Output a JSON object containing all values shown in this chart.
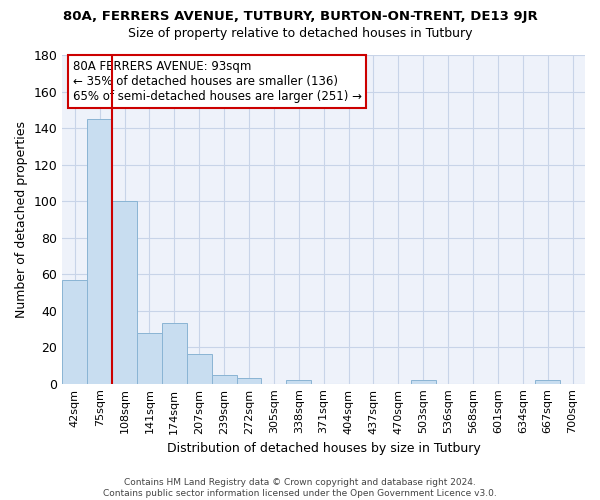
{
  "title": "80A, FERRERS AVENUE, TUTBURY, BURTON-ON-TRENT, DE13 9JR",
  "subtitle": "Size of property relative to detached houses in Tutbury",
  "xlabel": "Distribution of detached houses by size in Tutbury",
  "ylabel": "Number of detached properties",
  "bin_labels": [
    "42sqm",
    "75sqm",
    "108sqm",
    "141sqm",
    "174sqm",
    "207sqm",
    "239sqm",
    "272sqm",
    "305sqm",
    "338sqm",
    "371sqm",
    "404sqm",
    "437sqm",
    "470sqm",
    "503sqm",
    "536sqm",
    "568sqm",
    "601sqm",
    "634sqm",
    "667sqm",
    "700sqm"
  ],
  "bar_heights": [
    57,
    145,
    100,
    28,
    33,
    16,
    5,
    3,
    0,
    2,
    0,
    0,
    0,
    0,
    2,
    0,
    0,
    0,
    0,
    2,
    0
  ],
  "bar_color": "#c8ddf0",
  "bar_edge_color": "#8ab4d4",
  "grid_color": "#c8d4e8",
  "background_color": "#eef2fa",
  "annotation_title": "80A FERRERS AVENUE: 93sqm",
  "annotation_line1": "← 35% of detached houses are smaller (136)",
  "annotation_line2": "65% of semi-detached houses are larger (251) →",
  "annotation_box_facecolor": "#ffffff",
  "annotation_box_edgecolor": "#cc0000",
  "red_line_color": "#cc0000",
  "ylim": [
    0,
    180
  ],
  "yticks": [
    0,
    20,
    40,
    60,
    80,
    100,
    120,
    140,
    160,
    180
  ],
  "footer": "Contains HM Land Registry data © Crown copyright and database right 2024.\nContains public sector information licensed under the Open Government Licence v3.0."
}
